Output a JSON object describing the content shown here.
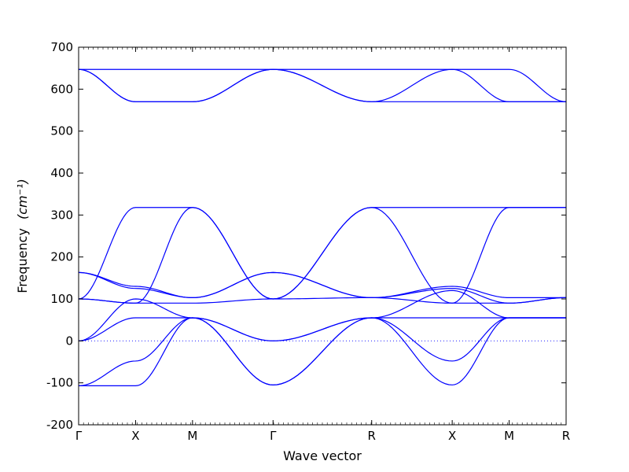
{
  "chart_data": {
    "type": "line",
    "xlabel": "Wave vector",
    "ylabel": "Frequency",
    "ylabel_unit": "(cm⁻¹)",
    "ylim": [
      -200,
      700
    ],
    "yticks": [
      -200,
      -100,
      0,
      100,
      200,
      300,
      400,
      500,
      600,
      700
    ],
    "x_path": [
      {
        "label": "Γ",
        "x": 0.0
      },
      {
        "label": "X",
        "x": 0.5
      },
      {
        "label": "M",
        "x": 1.0
      },
      {
        "label": "Γ",
        "x": 1.707
      },
      {
        "label": "R",
        "x": 2.573
      },
      {
        "label": "X",
        "x": 3.28
      },
      {
        "label": "M",
        "x": 3.78
      },
      {
        "label": "R",
        "x": 4.28
      }
    ],
    "xlim": [
      0,
      4.28
    ],
    "zero_line": true,
    "series_color": "#0000ff",
    "series": [
      {
        "x": [
          0,
          0.5,
          1.0,
          1.707,
          2.573,
          3.28,
          3.78,
          4.28
        ],
        "y": [
          647,
          647,
          647,
          647,
          647,
          647,
          647,
          570
        ]
      },
      {
        "x": [
          0,
          0.5,
          1.0,
          1.707,
          2.573,
          3.28,
          3.78,
          4.28
        ],
        "y": [
          647,
          570,
          570,
          647,
          570,
          647,
          570,
          570
        ]
      },
      {
        "x": [
          0,
          0.5,
          1.0,
          1.707,
          2.573,
          3.28,
          3.78,
          4.28
        ],
        "y": [
          647,
          570,
          570,
          647,
          570,
          570,
          570,
          570
        ]
      },
      {
        "x": [
          0,
          0.5,
          1.0,
          1.707,
          2.573,
          3.28,
          3.78,
          4.28
        ],
        "y": [
          100,
          318,
          318,
          100,
          318,
          318,
          318,
          318
        ]
      },
      {
        "x": [
          0,
          0.5,
          1.0,
          1.707,
          2.573,
          3.28,
          3.78,
          4.28
        ],
        "y": [
          100,
          90,
          318,
          100,
          318,
          90,
          318,
          318
        ]
      },
      {
        "x": [
          0,
          0.5,
          1.0,
          1.707,
          2.573,
          3.28,
          3.78,
          4.28
        ],
        "y": [
          163,
          130,
          103,
          163,
          103,
          130,
          103,
          103
        ]
      },
      {
        "x": [
          0,
          0.5,
          1.0,
          1.707,
          2.573,
          3.28,
          3.78,
          4.28
        ],
        "y": [
          163,
          125,
          103,
          163,
          103,
          125,
          90,
          103
        ]
      },
      {
        "x": [
          0,
          0.5,
          1.0,
          1.707,
          2.573,
          3.28,
          3.78,
          4.28
        ],
        "y": [
          100,
          90,
          90,
          100,
          103,
          90,
          90,
          103
        ]
      },
      {
        "x": [
          0,
          0.5,
          1.0,
          1.707,
          2.573,
          3.28,
          3.78,
          4.28
        ],
        "y": [
          0,
          55,
          55,
          0,
          55,
          55,
          55,
          55
        ]
      },
      {
        "x": [
          0,
          0.5,
          1.0,
          1.707,
          2.573,
          3.28,
          3.78,
          4.28
        ],
        "y": [
          0,
          100,
          55,
          0,
          55,
          120,
          55,
          55
        ]
      },
      {
        "x": [
          0,
          0.5,
          1.0,
          1.707,
          2.573,
          3.28,
          3.78,
          4.28
        ],
        "y": [
          -107,
          -48,
          55,
          -105,
          55,
          -48,
          55,
          55
        ]
      },
      {
        "x": [
          0,
          0.5,
          1.0,
          1.707,
          2.573,
          3.28,
          3.78,
          4.28
        ],
        "y": [
          -107,
          -107,
          55,
          -105,
          55,
          -105,
          55,
          55
        ]
      }
    ]
  }
}
